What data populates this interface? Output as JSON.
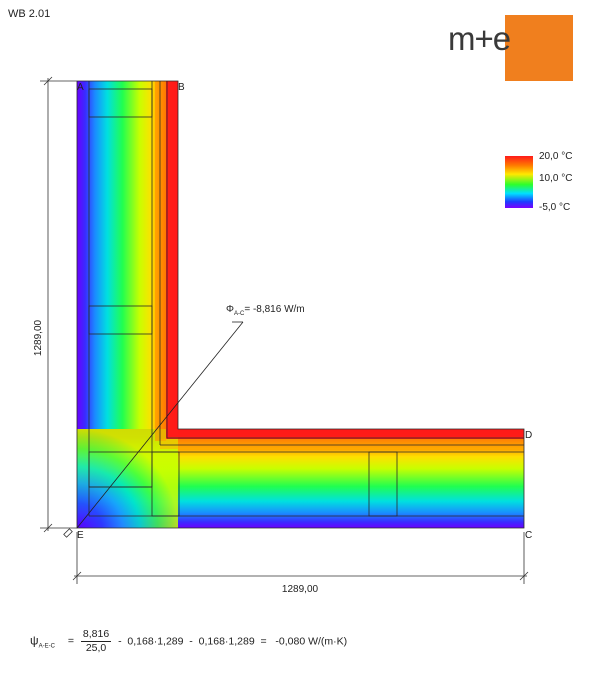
{
  "document": {
    "code": "WB 2.01"
  },
  "logo": {
    "text_main": "m",
    "text_plus": "+",
    "text_end": "e",
    "color": "#f07f1e"
  },
  "legend": {
    "max_label": "20,0 °C",
    "mid_label": "10,0 °C",
    "min_label": "-5,0 °C"
  },
  "points": {
    "A": "A",
    "B": "B",
    "C": "C",
    "D": "D",
    "E": "E"
  },
  "dimensions": {
    "vertical": "1289,00",
    "horizontal": "1289,00"
  },
  "heat_flow": {
    "symbol": "Φ",
    "subscript": "A-C",
    "value_text": "= -8,816 W/m"
  },
  "formula": {
    "psi_symbol": "ψ",
    "psi_subscript": "A-E-C",
    "equals": "=",
    "numerator": "8,816",
    "denominator": "25,0",
    "rest": "-  0,168·1,289  -  0,168·1,289  =   -0,080 W/(m·K)"
  }
}
